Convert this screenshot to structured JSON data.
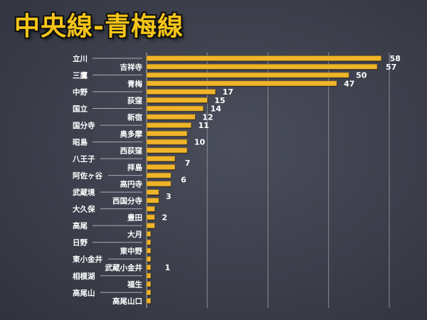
{
  "chart_data": {
    "type": "bar",
    "orientation": "horizontal",
    "title": "中央線-青梅線",
    "categories": [
      "立川",
      "吉祥寺",
      "三鷹",
      "青梅",
      "中野",
      "荻窪",
      "国立",
      "新宿",
      "国分寺",
      "奥多摩",
      "昭島",
      "西荻窪",
      "八王子",
      "拝島",
      "阿佐ヶ谷",
      "高円寺",
      "武蔵境",
      "西国分寺",
      "大久保",
      "豊田",
      "高尾",
      "大月",
      "日野",
      "東中野",
      "東小金井",
      "武蔵小金井",
      "相模湖",
      "福生",
      "高尾山",
      "高尾山口"
    ],
    "values": [
      58,
      57,
      50,
      47,
      17,
      15,
      14,
      12,
      11,
      10,
      10,
      10,
      7,
      7,
      6,
      6,
      3,
      3,
      2,
      2,
      2,
      1,
      1,
      1,
      1,
      1,
      1,
      1,
      1,
      1
    ],
    "data_labels": [
      {
        "index": 0,
        "text": "58"
      },
      {
        "index": 1,
        "text": "57"
      },
      {
        "index": 2,
        "text": "50"
      },
      {
        "index": 3,
        "text": "47"
      },
      {
        "index": 4,
        "text": "17"
      },
      {
        "index": 5,
        "text": "15"
      },
      {
        "index": 6,
        "text": "14"
      },
      {
        "index": 7,
        "text": "12"
      },
      {
        "index": 8,
        "text": "11"
      },
      {
        "index": 10,
        "text": "10"
      },
      {
        "index": 12.5,
        "text": "7"
      },
      {
        "index": 14.5,
        "text": "6"
      },
      {
        "index": 16.5,
        "text": "3"
      },
      {
        "index": 19,
        "text": "2"
      },
      {
        "index": 25,
        "text": "1"
      }
    ],
    "xlim": [
      0,
      60
    ],
    "gridlines": [
      15,
      30,
      45,
      60
    ],
    "grid": true,
    "bar_color": "#f0b429",
    "xlabel": "",
    "ylabel": ""
  }
}
